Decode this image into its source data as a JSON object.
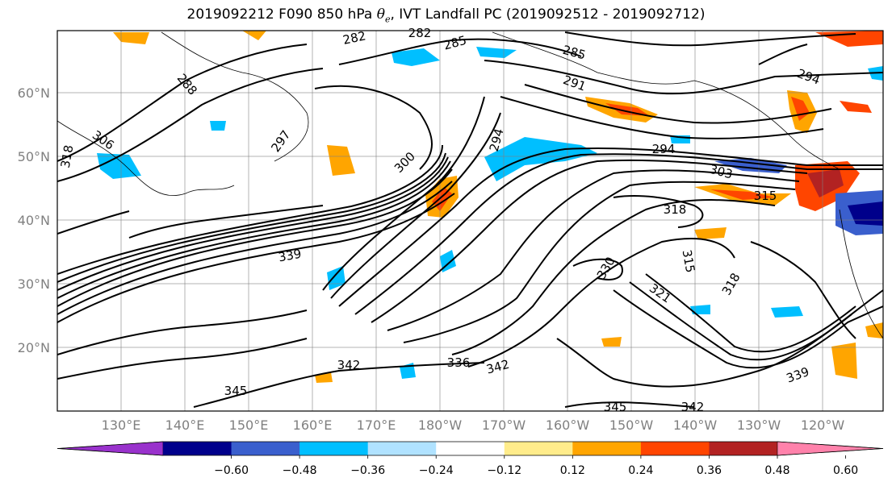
{
  "title": {
    "prefix": "2019092212 F090 850 hPa ",
    "theta": "θ",
    "theta_sub": "e",
    "suffix": ", IVT Landfall PC (2019092512 - 2019092712)"
  },
  "map": {
    "lat_labels": [
      "20°N",
      "30°N",
      "40°N",
      "50°N",
      "60°N"
    ],
    "lon_labels": [
      "130°E",
      "140°E",
      "150°E",
      "160°E",
      "170°E",
      "180°W",
      "170°W",
      "160°W",
      "150°W",
      "140°W",
      "130°W",
      "120°W"
    ],
    "contour_labels": [
      "282",
      "282",
      "285",
      "285",
      "288",
      "291",
      "294",
      "294",
      "294",
      "297",
      "300",
      "303",
      "306",
      "315",
      "315",
      "318",
      "318",
      "318",
      "321",
      "330",
      "336",
      "339",
      "339",
      "342",
      "342",
      "342",
      "345",
      "345"
    ]
  },
  "colorbar": {
    "ticks": [
      "−0.60",
      "−0.48",
      "−0.36",
      "−0.24",
      "−0.12",
      "0.12",
      "0.24",
      "0.36",
      "0.48",
      "0.60"
    ],
    "colors": [
      "#9932cc",
      "#00008b",
      "#3a5fcd",
      "#00bfff",
      "#b0e2ff",
      "#ffffff",
      "#ffec8b",
      "#ffa500",
      "#ff4500",
      "#b22222",
      "#ff82ab"
    ]
  }
}
